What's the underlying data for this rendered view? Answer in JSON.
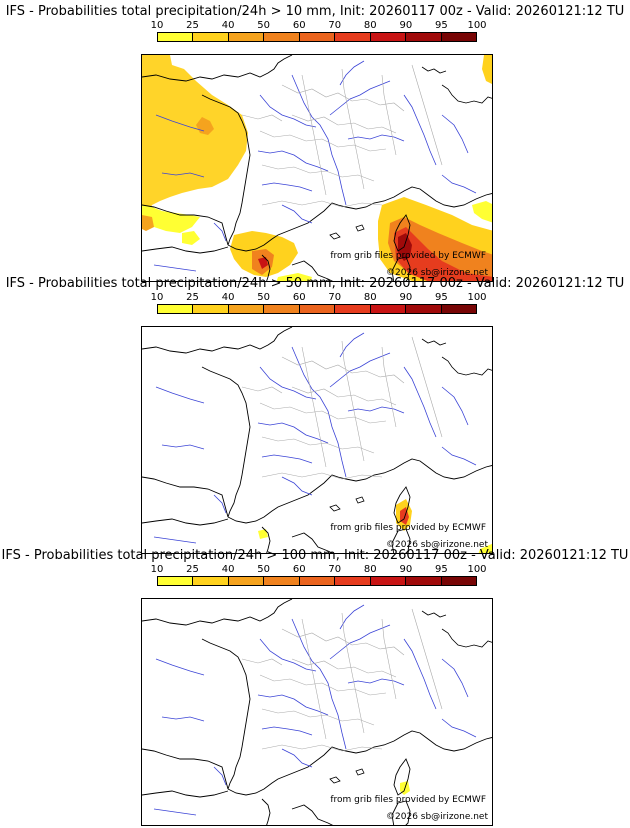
{
  "colorbar": {
    "ticks": [
      "10",
      "25",
      "40",
      "50",
      "60",
      "70",
      "80",
      "90",
      "95",
      "100"
    ],
    "colors": [
      "#ffff33",
      "#ffd21e",
      "#f5a31e",
      "#f0821e",
      "#eb641e",
      "#e63c1e",
      "#c81414",
      "#a00a0a",
      "#780505"
    ]
  },
  "credits": {
    "source": "from grib files provided by ECMWF",
    "copyright": "©2026 sb@irizone.net"
  },
  "panels": [
    {
      "title": "IFS - Probabilities total precipitation/24h > 10 mm, Init: 20260117 00z - Valid: 20260121:12 TU"
    },
    {
      "title": "IFS - Probabilities total precipitation/24h > 50 mm, Init: 20260117 00z - Valid: 20260121:12 TU"
    },
    {
      "title": "IFS - Probabilities total precipitation/24h > 100 mm, Init: 20260117 00z - Valid: 20260121:12 TU"
    }
  ]
}
